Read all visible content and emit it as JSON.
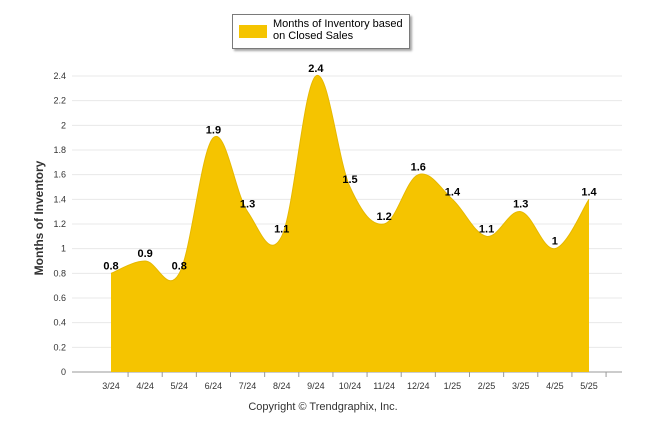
{
  "chart_data": {
    "type": "area",
    "categories": [
      "3/24",
      "4/24",
      "5/24",
      "6/24",
      "7/24",
      "8/24",
      "9/24",
      "10/24",
      "11/24",
      "12/24",
      "1/25",
      "2/25",
      "3/25",
      "4/25",
      "5/25"
    ],
    "series": [
      {
        "name": "Months of Inventory based on Closed Sales",
        "values": [
          0.8,
          0.9,
          0.8,
          1.9,
          1.3,
          1.1,
          2.4,
          1.5,
          1.2,
          1.6,
          1.4,
          1.1,
          1.3,
          1.0,
          1.4
        ],
        "labels": [
          "0.8",
          "0.9",
          "0.8",
          "1.9",
          "1.3",
          "1.1",
          "2.4",
          "1.5",
          "1.2",
          "1.6",
          "1.4",
          "1.1",
          "1.3",
          "1",
          "1.4"
        ]
      }
    ],
    "ylabel": "Months of Inventory",
    "xlabel": "",
    "ylim": [
      0,
      2.4
    ],
    "yticks": [
      "0",
      "0.2",
      "0.4",
      "0.6",
      "0.8",
      "1",
      "1.2",
      "1.4",
      "1.6",
      "1.8",
      "2",
      "2.2",
      "2.4"
    ],
    "grid": true,
    "legend": "top-center",
    "color": "#f5c400"
  },
  "footer": {
    "copyright": "Copyright © Trendgraphix, Inc."
  },
  "legend": {
    "label": "Months of Inventory based on Closed Sales"
  }
}
